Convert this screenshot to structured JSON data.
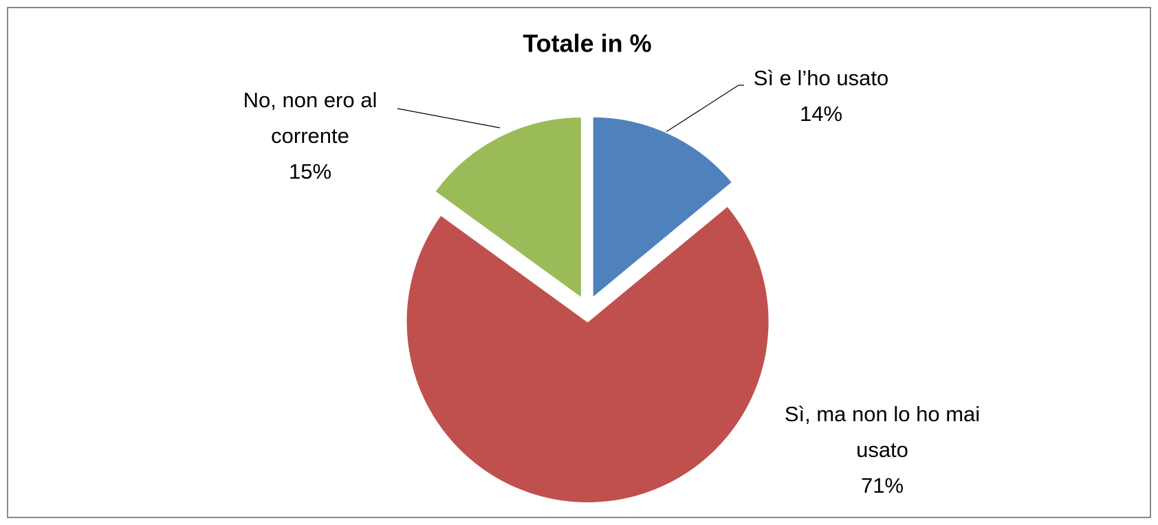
{
  "chart_data": {
    "type": "pie",
    "title": "Totale  in %",
    "categories": [
      "Sì e l’ho usato",
      "Sì, ma non lo ho mai usato",
      "No, non ero al corrente"
    ],
    "values": [
      14,
      71,
      15
    ],
    "value_labels": [
      "14%",
      "71%",
      "15%"
    ],
    "colors": [
      "#4f81bd",
      "#c0504d",
      "#9bbb59"
    ]
  }
}
